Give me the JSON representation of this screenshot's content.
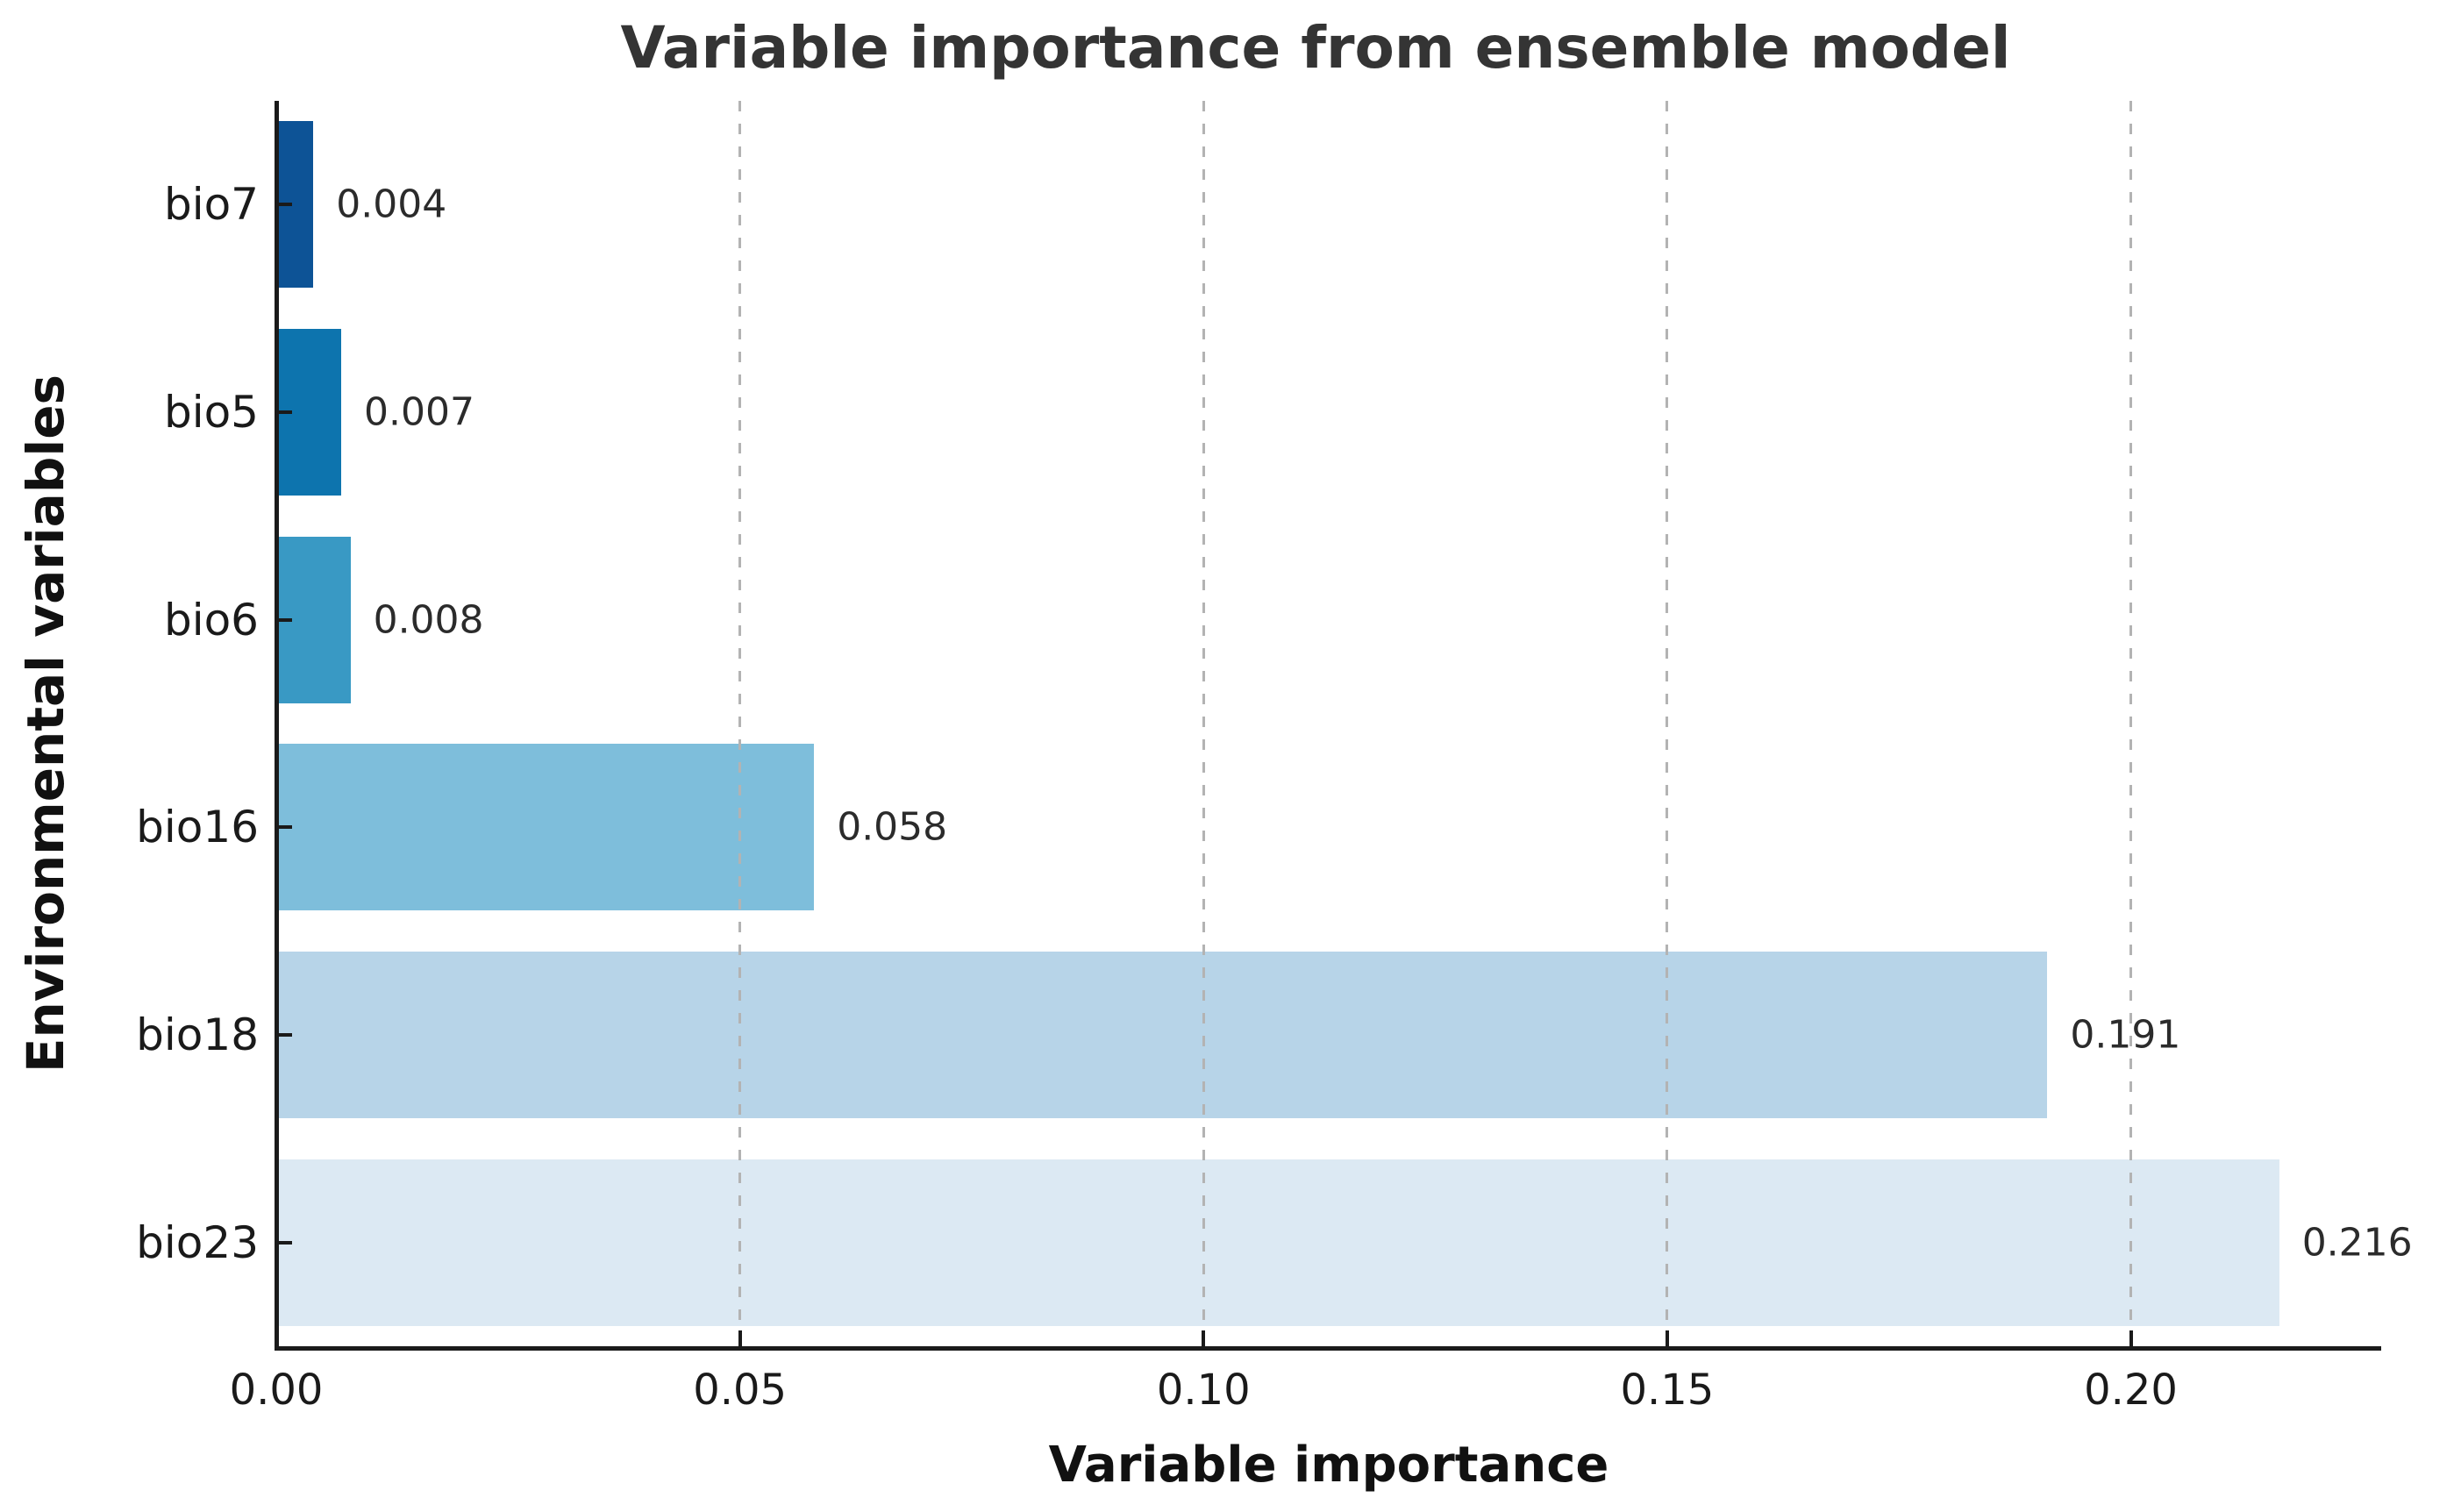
{
  "chart_data": {
    "type": "bar",
    "orientation": "horizontal",
    "title": "Variable importance from ensemble model",
    "xlabel": "Variable importance",
    "ylabel": "Environmental variables",
    "categories": [
      "bio7",
      "bio5",
      "bio6",
      "bio16",
      "bio18",
      "bio23"
    ],
    "values": [
      0.004,
      0.007,
      0.008,
      0.058,
      0.191,
      0.216
    ],
    "value_labels": [
      "0.004",
      "0.007",
      "0.008",
      "0.058",
      "0.191",
      "0.216"
    ],
    "bar_colors": [
      "#0d5396",
      "#0d74ae",
      "#3999c4",
      "#7ebedb",
      "#b7d4e8",
      "#dce9f3"
    ],
    "xlim": [
      0,
      0.227
    ],
    "xticks": [
      0.0,
      0.05,
      0.1,
      0.15,
      0.2
    ],
    "xtick_labels": [
      "0.00",
      "0.05",
      "0.10",
      "0.15",
      "0.20"
    ],
    "grid": "vertical dashed gridlines at x ticks, drawn over bars",
    "gridline_color": "#b3b3b3",
    "axis_color": "#1a1a1a",
    "legend": "none"
  }
}
